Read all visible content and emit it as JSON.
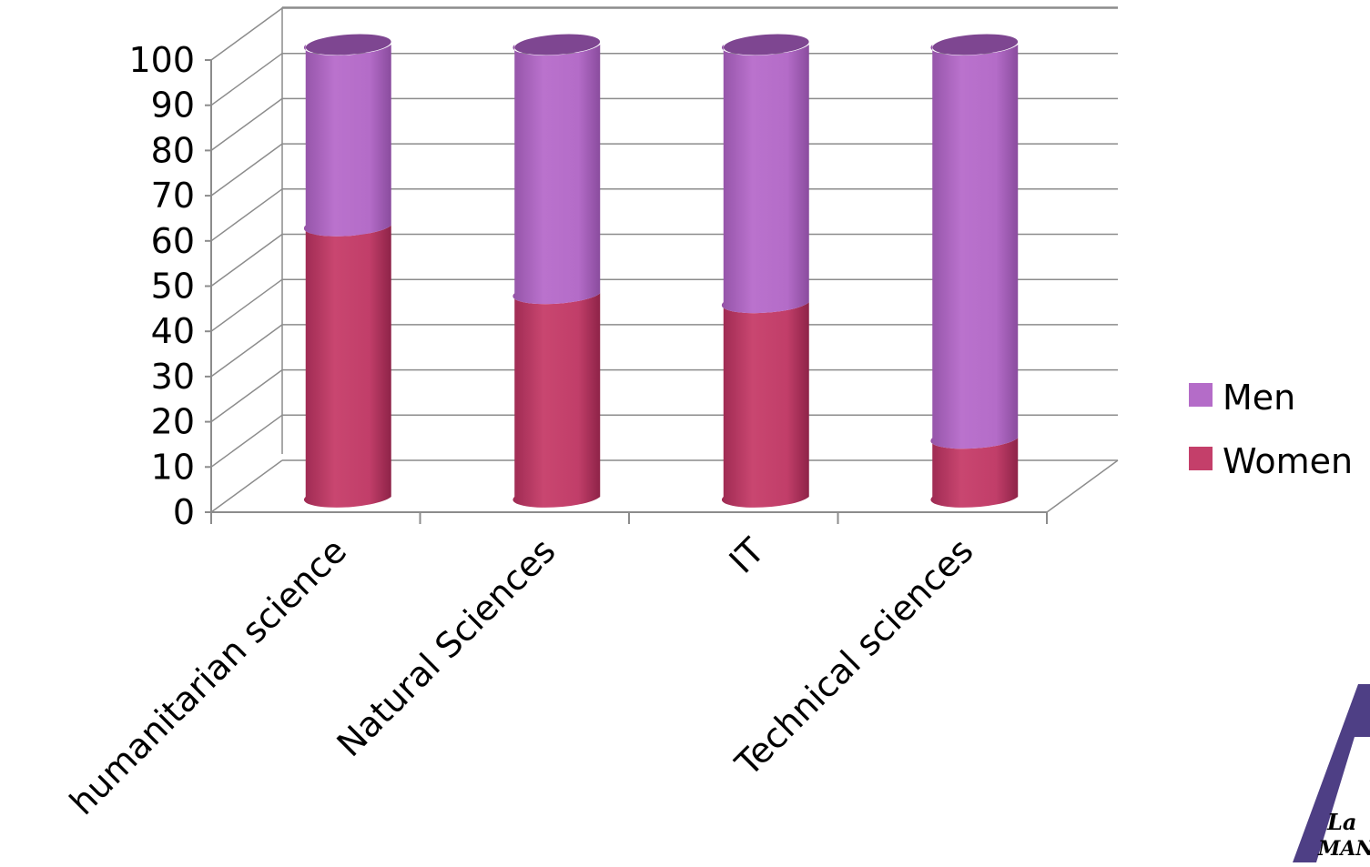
{
  "chart_data": {
    "type": "bar",
    "stacked": true,
    "style": "3d-cylinder",
    "categories": [
      "humanitarian science",
      "Natural Sciences",
      "IT",
      "Technical sciences"
    ],
    "series": [
      {
        "name": "Women",
        "values": [
          60,
          45,
          43,
          13
        ],
        "color": "#C43F6A"
      },
      {
        "name": "Men",
        "values": [
          40,
          55,
          57,
          87
        ],
        "color": "#B46CC8"
      }
    ],
    "ylim": [
      0,
      100
    ],
    "yticks": [
      "0",
      "10",
      "20",
      "30",
      "40",
      "50",
      "60",
      "70",
      "80",
      "90",
      "100"
    ],
    "grid": true,
    "legend_position": "right",
    "legend_order": [
      "Men",
      "Women"
    ]
  },
  "logo": {
    "text_line1": "La",
    "text_line2": "MANCH",
    "color": "#4E3F85"
  }
}
